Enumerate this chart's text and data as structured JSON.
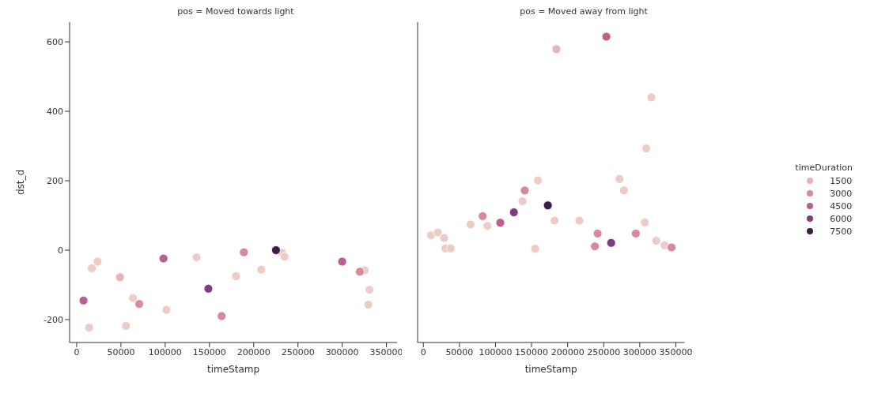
{
  "chart_data": [
    {
      "type": "scatter",
      "title": "pos = Moved towards light",
      "xlabel": "timeStamp",
      "ylabel": "dst_d",
      "xlim": [
        -8000,
        362000
      ],
      "ylim": [
        -266,
        657
      ],
      "xticks": [
        0,
        50000,
        100000,
        150000,
        200000,
        250000,
        300000,
        350000
      ],
      "yticks": [
        -200,
        0,
        200,
        400,
        600
      ],
      "marker": "circle",
      "grid": false,
      "legend": false,
      "series": [
        {
          "color": "#e9b2b4",
          "x": [
            14100,
            17100,
            23600,
            48900,
            55700,
            63600,
            101400,
            135500,
            180100,
            208600,
            232200,
            234900,
            325300,
            330900,
            329500
          ],
          "values": [
            -223,
            -52,
            -33,
            -78,
            -218,
            -138,
            -172,
            -21,
            -75,
            -56,
            -8,
            -19,
            -58,
            -114,
            -157
          ],
          "colors": [
            "#eecbc5",
            "#eecbc5",
            "#eecbc5",
            "#e9b2b4",
            "#eecbc5",
            "#eecbc5",
            "#eecbc5",
            "#eecbc5",
            "#eecbc5",
            "#eecbc5",
            "#eecbc5",
            "#eecbc5",
            "#eecbc5",
            "#eecbc5",
            "#eecbc5"
          ]
        },
        {
          "color": "#d68a9c",
          "x": [
            70700,
            163800,
            188900,
            320000
          ],
          "values": [
            -155,
            -190,
            -6,
            -62
          ]
        },
        {
          "color": "#b8618f",
          "x": [
            7700,
            98100,
            300000
          ],
          "values": [
            -145,
            -24,
            -33
          ]
        },
        {
          "color": "#7f3d7f",
          "x": [
            148800
          ],
          "values": [
            -111
          ]
        },
        {
          "color": "#3a1d48",
          "x": [
            225200
          ],
          "values": [
            0
          ]
        }
      ]
    },
    {
      "type": "scatter",
      "title": "pos = Moved away from light",
      "xlabel": "timeStamp",
      "xlim": [
        -8000,
        362000
      ],
      "ylim": [
        -266,
        657
      ],
      "xticks": [
        0,
        50000,
        100000,
        150000,
        200000,
        250000,
        300000,
        350000
      ],
      "yticks": [
        -200,
        0,
        200,
        400,
        600
      ],
      "tick_labels": "x",
      "marker": "circle",
      "grid": false,
      "legend": "right",
      "legend_title": "timeDuration",
      "series": [
        {
          "name": "1500",
          "color": "#e9b2b4",
          "x": [
            10600,
            20000,
            28800,
            30600,
            38000,
            65400,
            88900,
            137300,
            155000,
            181800,
            216200,
            307000,
            322900,
            334400,
            158800,
            184400,
            316100,
            309000,
            271900,
            278100
          ],
          "values": [
            43,
            51,
            35,
            5,
            5,
            74,
            70,
            141,
            4,
            85,
            85,
            80,
            27,
            14,
            201,
            579,
            440,
            293,
            205,
            172
          ],
          "colors": [
            "#eecbc5",
            "#eecbc5",
            "#eecbc5",
            "#eecbc5",
            "#eecbc5",
            "#eecbc5",
            "#eecbc5",
            "#eecbc5",
            "#eecbc5",
            "#eecbc5",
            "#eecbc5",
            "#eecbc5",
            "#eecbc5",
            "#eecbc5",
            "#eecbc5",
            "#e9b2b4",
            "#eecbc5",
            "#eecbc5",
            "#eecbc5",
            "#eecbc5"
          ]
        },
        {
          "name": "3000",
          "color": "#d68a9c",
          "x": [
            82200,
            237800,
            241600,
            294600,
            344100,
            140600
          ],
          "values": [
            98,
            11,
            48,
            48,
            8,
            172
          ]
        },
        {
          "name": "4500",
          "color": "#b8618f",
          "x": [
            106600,
            253700
          ],
          "values": [
            79,
            615
          ]
        },
        {
          "name": "6000",
          "color": "#7f3d7f",
          "x": [
            125500,
            260400
          ],
          "values": [
            109,
            21
          ]
        },
        {
          "name": "7500",
          "color": "#3a1d48",
          "x": [
            172600
          ],
          "values": [
            129
          ]
        }
      ]
    }
  ]
}
